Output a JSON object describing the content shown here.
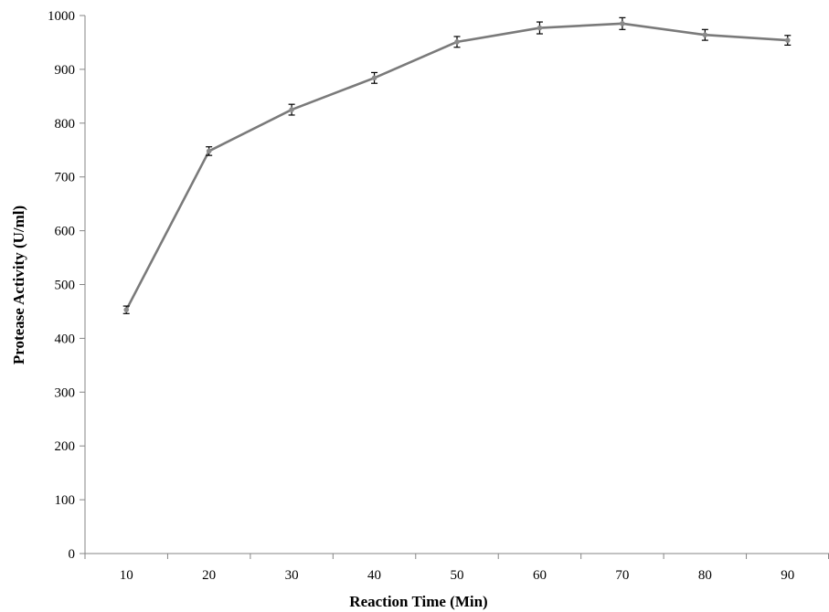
{
  "chart_data": {
    "type": "line",
    "xlabel": "Reaction Time (Min)",
    "ylabel": "Protease Activity (U/ml)",
    "categories": [
      "10",
      "20",
      "30",
      "40",
      "50",
      "60",
      "70",
      "80",
      "90"
    ],
    "series": [
      {
        "values": [
          453,
          748,
          825,
          884,
          951,
          977,
          985,
          964,
          954
        ],
        "errors": [
          7,
          8,
          10,
          10,
          10,
          11,
          11,
          10,
          9
        ],
        "color": "#7a7a7a",
        "marker_color": "#8a8a8a"
      }
    ],
    "ylim": [
      0,
      1000
    ],
    "yticks": [
      0,
      100,
      200,
      300,
      400,
      500,
      600,
      700,
      800,
      900,
      1000
    ],
    "grid": false,
    "legend": "none",
    "axis_color": "#868686"
  }
}
